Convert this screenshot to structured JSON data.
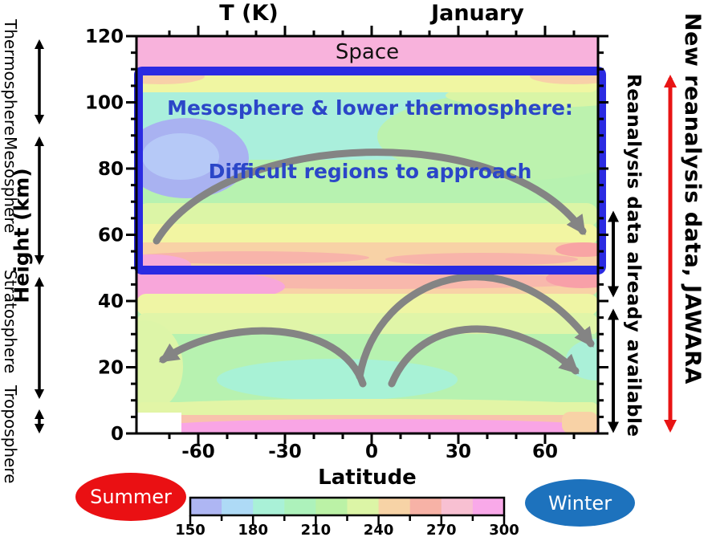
{
  "title_left": "T (K)",
  "title_right": "January",
  "plot": {
    "space_label": "Space",
    "xlabel": "Latitude",
    "ylabel": "Height (km)",
    "xticks": [
      -60,
      -30,
      0,
      30,
      60
    ],
    "yticks": [
      0,
      20,
      40,
      60,
      80,
      100,
      120
    ]
  },
  "blue_box": {
    "line1": "Mesosphere & lower thermosphere:",
    "line2": "Difficult regions to approach",
    "border_color": "#2b2be2",
    "text_color": "#2b46c8"
  },
  "left_labels": [
    {
      "label": "Thermosphere"
    },
    {
      "label": "Mesosphere"
    },
    {
      "label": "Stratosphere"
    },
    {
      "label": "Troposphere"
    }
  ],
  "right_annotations": {
    "available_label": "Reanalysis data already available",
    "new_label": "New reanalysis data, JAWARA",
    "black_arrow_color": "#000000",
    "red_arrow_color": "#e81414"
  },
  "season_badges": {
    "summer": {
      "label": "Summer",
      "color": "#ea1013",
      "text_color": "#ffffff"
    },
    "winter": {
      "label": "Winter",
      "color": "#1d72bd",
      "text_color": "#ffffff"
    }
  },
  "colorbar": {
    "units": "K",
    "ticks": [
      150,
      180,
      210,
      240,
      270,
      300
    ],
    "levels": [
      150,
      165,
      180,
      195,
      210,
      225,
      240,
      255,
      270,
      285,
      300
    ],
    "colors": [
      "#aeb6f3",
      "#aedaf6",
      "#a9f1d7",
      "#adf2bb",
      "#bbf2a6",
      "#dcf5a6",
      "#f7d3a6",
      "#f7b2a6",
      "#f8c0d2",
      "#f9a9e9"
    ]
  },
  "chart_data": {
    "type": "heatmap",
    "title": "T (K)",
    "subtitle": "January",
    "xlabel": "Latitude",
    "ylabel": "Height (km)",
    "xlim": [
      -80,
      80
    ],
    "ylim": [
      0,
      120
    ],
    "xticks": [
      -60,
      -30,
      0,
      30,
      60
    ],
    "yticks": [
      0,
      20,
      40,
      60,
      80,
      100,
      120
    ],
    "colorbar": {
      "ticks": [
        150,
        180,
        210,
        240,
        270,
        300
      ],
      "levels": [
        150,
        165,
        180,
        195,
        210,
        225,
        240,
        255,
        270,
        285,
        300
      ],
      "colors": [
        "#aeb6f3",
        "#aedaf6",
        "#a9f1d7",
        "#adf2bb",
        "#bbf2a6",
        "#dcf5a6",
        "#f7d3a6",
        "#f7b2a6",
        "#f8c0d2",
        "#f9a9e9"
      ],
      "units": "K"
    },
    "grid": {
      "latitudes": [
        -75,
        -45,
        -15,
        15,
        45,
        75
      ],
      "heights_km": [
        0,
        10,
        20,
        30,
        40,
        50,
        60,
        70,
        80,
        90,
        100,
        110,
        118
      ],
      "temperature_K": [
        [
          null,
          287,
          293,
          293,
          289,
          251
        ],
        [
          230,
          226,
          221,
          224,
          229,
          227
        ],
        [
          212,
          206,
          196,
          198,
          208,
          213
        ],
        [
          225,
          220,
          216,
          216,
          218,
          214
        ],
        [
          250,
          246,
          242,
          239,
          240,
          233
        ],
        [
          276,
          264,
          258,
          255,
          252,
          246
        ],
        [
          255,
          250,
          247,
          244,
          242,
          249
        ],
        [
          222,
          228,
          231,
          229,
          227,
          233
        ],
        [
          196,
          204,
          210,
          213,
          214,
          218
        ],
        [
          163,
          172,
          192,
          200,
          206,
          211
        ],
        [
          198,
          200,
          202,
          203,
          206,
          214
        ],
        [
          240,
          235,
          232,
          232,
          235,
          245
        ],
        [
          290,
          290,
          290,
          290,
          290,
          290
        ]
      ]
    },
    "annotations": [
      "Space",
      "Mesosphere & lower thermosphere:",
      "Difficult regions to approach",
      "Summer",
      "Winter",
      "Reanalysis data already available",
      "New reanalysis data, JAWARA"
    ]
  }
}
